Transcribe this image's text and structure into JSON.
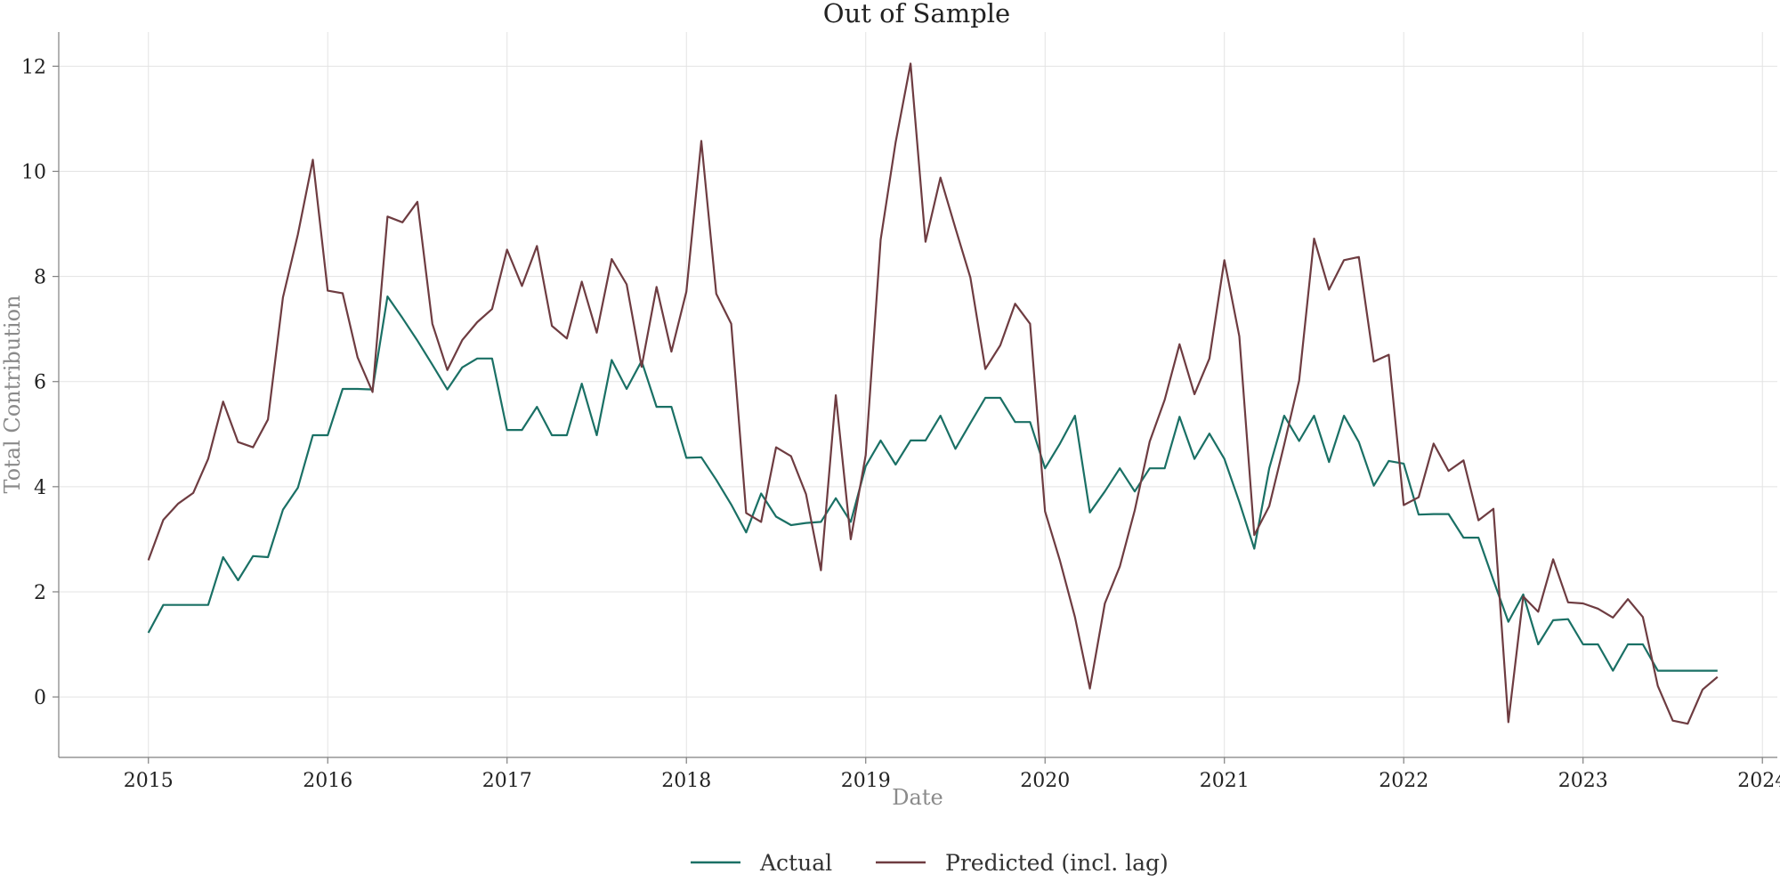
{
  "chart_data": {
    "type": "line",
    "title": "Out of Sample",
    "xlabel": "Date",
    "ylabel": "Total Contribution",
    "xlim": [
      "2014-07-01",
      "2024-02-01"
    ],
    "ylim": [
      -1.15,
      12.65
    ],
    "x_ticks": [
      "2015",
      "2016",
      "2017",
      "2018",
      "2019",
      "2020",
      "2021",
      "2022",
      "2023",
      "2024"
    ],
    "y_ticks": [
      "0",
      "2",
      "4",
      "6",
      "8",
      "10",
      "12"
    ],
    "grid": true,
    "legend_position": "bottom-center",
    "x": [
      "2015-01",
      "2015-02",
      "2015-03",
      "2015-04",
      "2015-05",
      "2015-06",
      "2015-07",
      "2015-08",
      "2015-09",
      "2015-10",
      "2015-11",
      "2015-12",
      "2016-01",
      "2016-02",
      "2016-03",
      "2016-04",
      "2016-05",
      "2016-06",
      "2016-07",
      "2016-08",
      "2016-09",
      "2016-10",
      "2016-11",
      "2016-12",
      "2017-01",
      "2017-02",
      "2017-03",
      "2017-04",
      "2017-05",
      "2017-06",
      "2017-07",
      "2017-08",
      "2017-09",
      "2017-10",
      "2017-11",
      "2017-12",
      "2018-01",
      "2018-02",
      "2018-03",
      "2018-04",
      "2018-05",
      "2018-06",
      "2018-07",
      "2018-08",
      "2018-09",
      "2018-10",
      "2018-11",
      "2018-12",
      "2019-01",
      "2019-02",
      "2019-03",
      "2019-04",
      "2019-05",
      "2019-06",
      "2019-07",
      "2019-08",
      "2019-09",
      "2019-10",
      "2019-11",
      "2019-12",
      "2020-01",
      "2020-02",
      "2020-03",
      "2020-04",
      "2020-05",
      "2020-06",
      "2020-07",
      "2020-08",
      "2020-09",
      "2020-10",
      "2020-11",
      "2020-12",
      "2021-01",
      "2021-02",
      "2021-03",
      "2021-04",
      "2021-05",
      "2021-06",
      "2021-07",
      "2021-08",
      "2021-09",
      "2021-10",
      "2021-11",
      "2021-12",
      "2022-01",
      "2022-02",
      "2022-03",
      "2022-04",
      "2022-05",
      "2022-06",
      "2022-07",
      "2022-08",
      "2022-09",
      "2022-10",
      "2022-11",
      "2022-12",
      "2023-01",
      "2023-02",
      "2023-03",
      "2023-04",
      "2023-05",
      "2023-06",
      "2023-07",
      "2023-08",
      "2023-09",
      "2023-10"
    ],
    "series": [
      {
        "name": "Actual",
        "color": "#1a7065",
        "values": [
          1.22,
          1.75,
          1.75,
          1.75,
          1.75,
          2.66,
          2.22,
          2.68,
          2.66,
          3.56,
          3.98,
          4.98,
          4.98,
          5.86,
          5.86,
          5.85,
          7.62,
          7.21,
          6.78,
          6.32,
          5.85,
          6.27,
          6.44,
          6.44,
          5.08,
          5.08,
          5.52,
          4.98,
          4.98,
          5.96,
          4.98,
          6.41,
          5.86,
          6.39,
          5.52,
          5.52,
          4.55,
          4.56,
          4.13,
          3.66,
          3.13,
          3.87,
          3.43,
          3.27,
          3.31,
          3.33,
          3.78,
          3.33,
          4.39,
          4.88,
          4.42,
          4.88,
          4.88,
          5.35,
          4.72,
          5.21,
          5.69,
          5.69,
          5.23,
          5.23,
          4.35,
          4.82,
          5.35,
          3.51,
          3.91,
          4.35,
          3.91,
          4.35,
          4.35,
          5.33,
          4.53,
          5.01,
          4.53,
          3.71,
          2.82,
          4.35,
          5.35,
          4.87,
          5.35,
          4.47,
          5.35,
          4.85,
          4.02,
          4.49,
          4.44,
          3.47,
          3.48,
          3.48,
          3.03,
          3.03,
          2.22,
          1.43,
          1.95,
          1.0,
          1.46,
          1.48,
          1.0,
          1.0,
          0.5,
          1.0,
          1.0,
          0.5,
          0.5,
          0.5,
          0.5,
          0.5
        ]
      },
      {
        "name": "Predicted (incl. lag)",
        "color": "#6e3c41",
        "values": [
          2.6,
          3.37,
          3.68,
          3.88,
          4.53,
          5.62,
          4.85,
          4.75,
          5.28,
          7.6,
          8.8,
          10.22,
          7.73,
          7.68,
          6.46,
          5.8,
          9.14,
          9.03,
          9.42,
          7.1,
          6.22,
          6.79,
          7.13,
          7.38,
          8.51,
          7.82,
          8.58,
          7.06,
          6.82,
          7.9,
          6.93,
          8.33,
          7.85,
          6.28,
          7.8,
          6.57,
          7.71,
          10.58,
          7.67,
          7.1,
          3.5,
          3.33,
          4.75,
          4.58,
          3.86,
          2.41,
          5.74,
          3.0,
          4.6,
          8.7,
          10.55,
          12.05,
          8.66,
          9.88,
          8.92,
          7.98,
          6.24,
          6.69,
          7.48,
          7.1,
          3.53,
          2.59,
          1.52,
          0.16,
          1.78,
          2.48,
          3.55,
          4.86,
          5.65,
          6.71,
          5.76,
          6.44,
          8.31,
          6.86,
          3.08,
          3.63,
          4.8,
          6.02,
          8.72,
          7.75,
          8.31,
          8.37,
          6.38,
          6.51,
          3.65,
          3.8,
          4.82,
          4.3,
          4.5,
          3.36,
          3.58,
          -0.48,
          1.91,
          1.62,
          2.62,
          1.8,
          1.78,
          1.68,
          1.51,
          1.86,
          1.52,
          0.21,
          -0.45,
          -0.51,
          0.14,
          0.38
        ]
      }
    ]
  }
}
